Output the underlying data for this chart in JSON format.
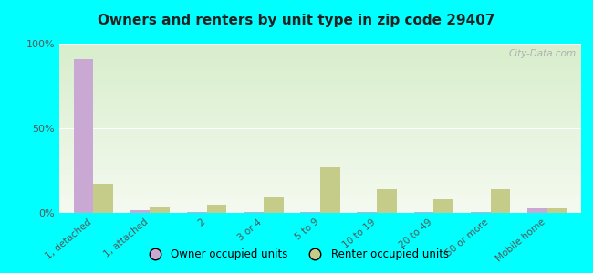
{
  "title": "Owners and renters by unit type in zip code 29407",
  "categories": [
    "1, detached",
    "1, attached",
    "2",
    "3 or 4",
    "5 to 9",
    "10 to 19",
    "20 to 49",
    "50 or more",
    "Mobile home"
  ],
  "owner_values": [
    91,
    1.5,
    0.5,
    0.5,
    0.5,
    0.5,
    0.5,
    0.5,
    2.5
  ],
  "renter_values": [
    17,
    3.5,
    5,
    9,
    27,
    14,
    8,
    14,
    2.5
  ],
  "owner_color": "#c9a8d4",
  "renter_color": "#c5cb88",
  "bg_top": "#d8eecc",
  "bg_bottom": "#f5faf0",
  "outer_bg": "#00ffff",
  "ylim": [
    0,
    100
  ],
  "yticks": [
    0,
    50,
    100
  ],
  "ytick_labels": [
    "0%",
    "50%",
    "100%"
  ],
  "watermark": "City-Data.com",
  "bar_width": 0.35,
  "legend_owner": "Owner occupied units",
  "legend_renter": "Renter occupied units"
}
